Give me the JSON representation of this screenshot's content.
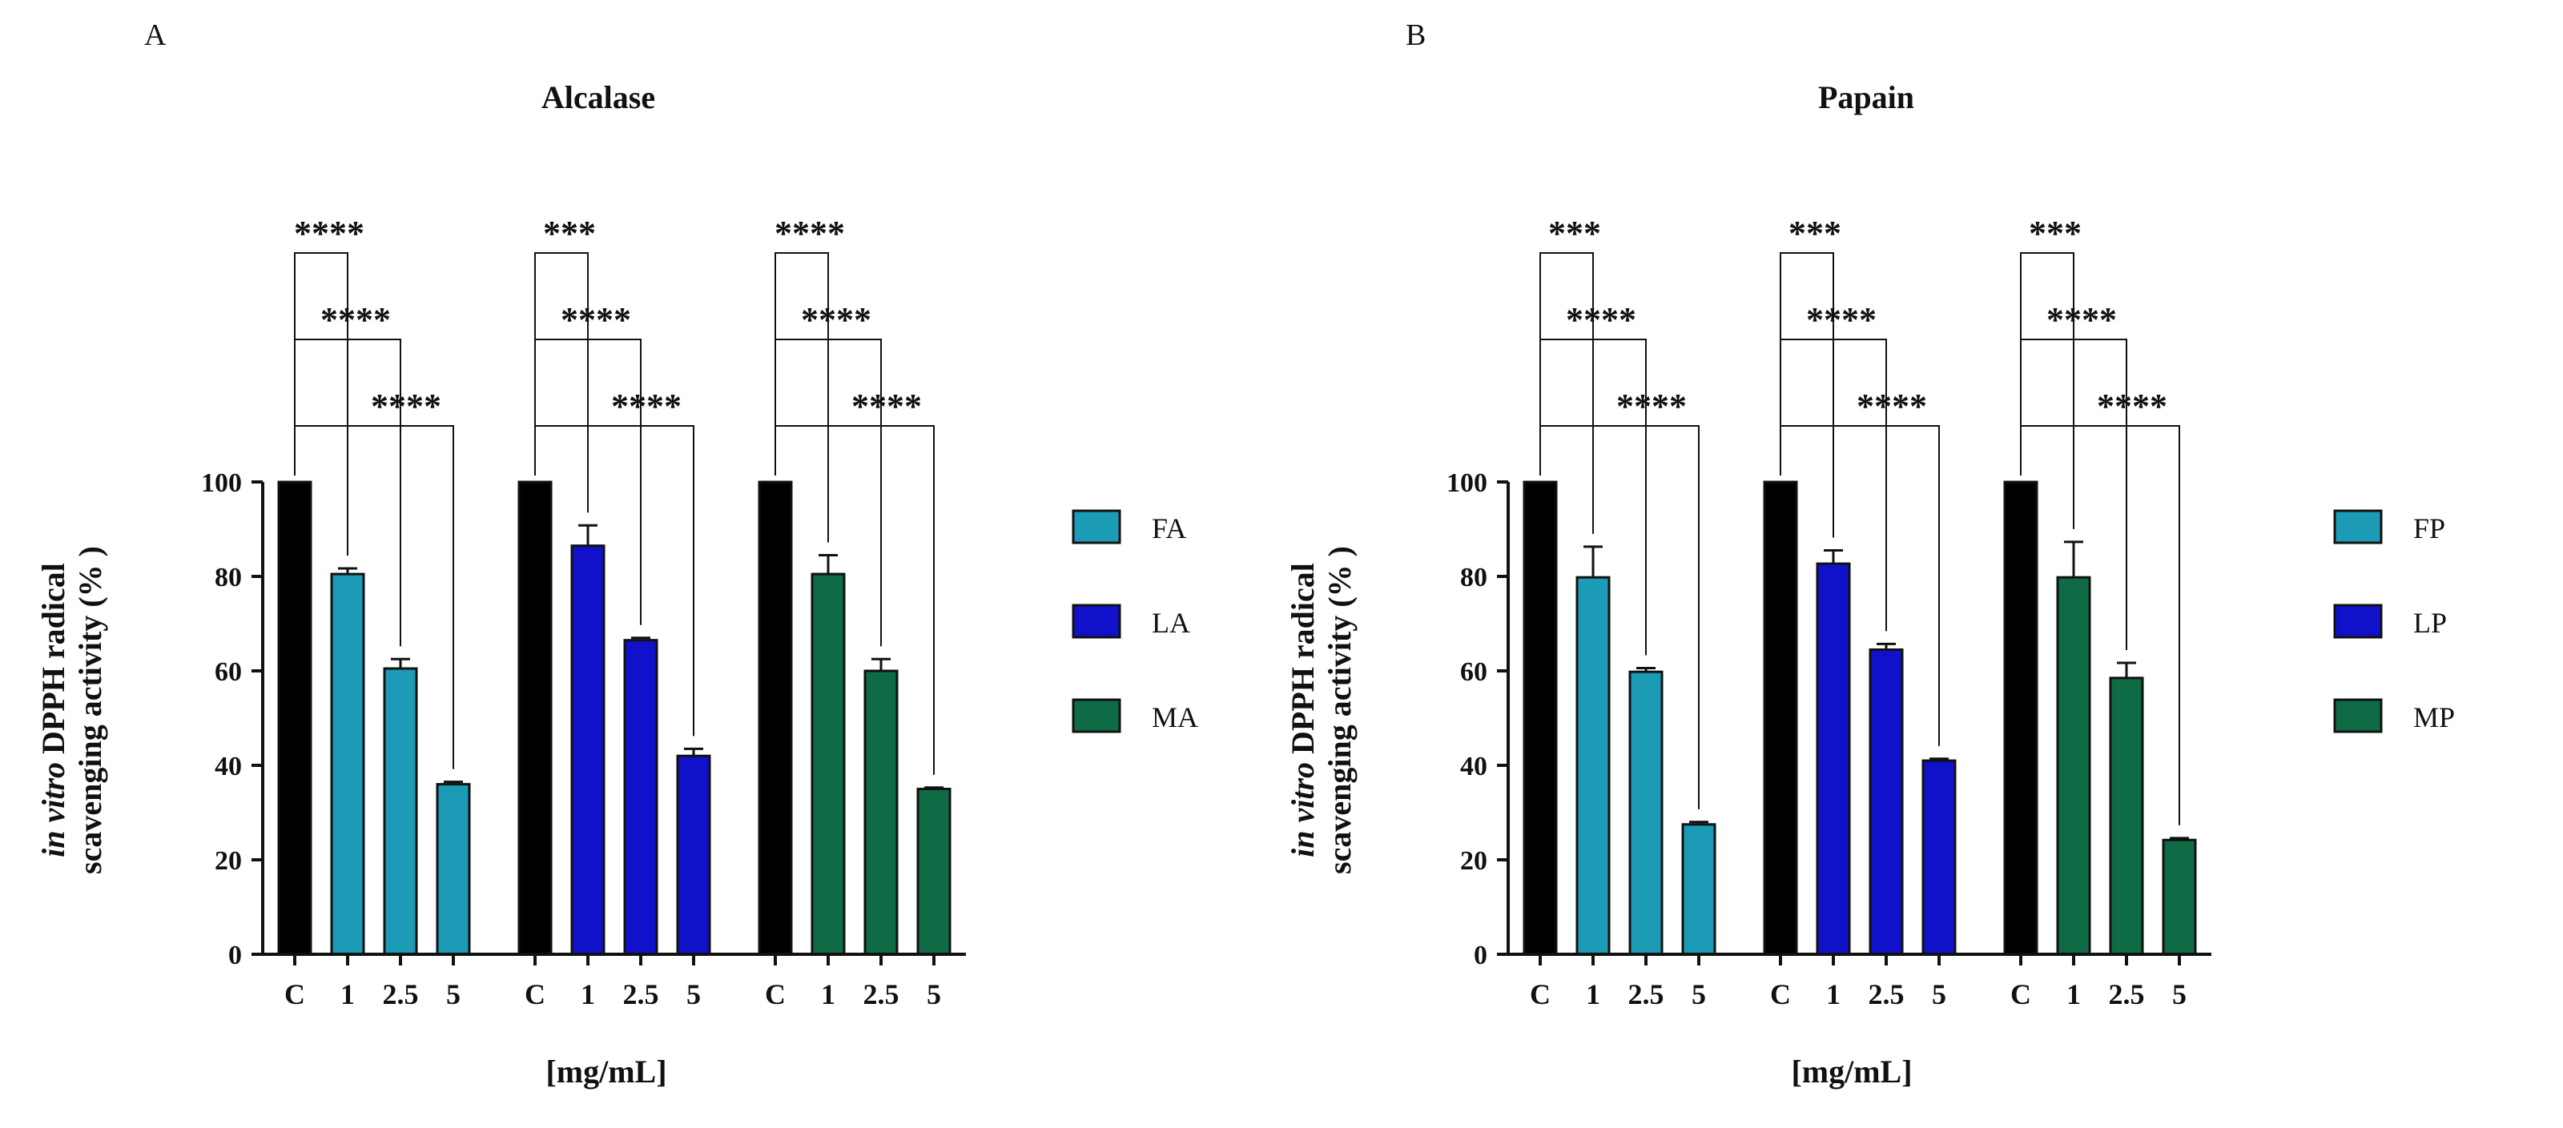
{
  "chart_data": [
    {
      "type": "bar",
      "panel": "A",
      "title": "Alcalase",
      "xlabel": "[mg/mL]",
      "ylabel_italic": "in vitro",
      "ylabel_rest": " DPPH radical",
      "ylabel_line2": "scavenging activity (% )",
      "ylim": [
        0,
        100
      ],
      "yticks": [
        "0",
        "20",
        "40",
        "60",
        "80",
        "100"
      ],
      "categories": [
        "C",
        "1",
        "2.5",
        "5"
      ],
      "series": [
        {
          "name": "FA",
          "color": "#1b9bb5",
          "values": [
            100,
            80.5,
            60.5,
            36.0
          ],
          "errors": [
            0,
            1.2,
            2.0,
            0.5
          ],
          "significance": [
            "****",
            "****",
            "****"
          ]
        },
        {
          "name": "LA",
          "color": "#1111cc",
          "values": [
            100,
            86.5,
            66.5,
            42.0
          ],
          "errors": [
            0,
            4.3,
            0.5,
            1.5
          ],
          "significance": [
            "***",
            "****",
            "****"
          ]
        },
        {
          "name": "MA",
          "color": "#0e6b45",
          "values": [
            100,
            80.5,
            60.0,
            35.0
          ],
          "errors": [
            0,
            4.0,
            2.5,
            0.3
          ],
          "significance": [
            "****",
            "****",
            "****"
          ]
        }
      ],
      "control_color": "#000000"
    },
    {
      "type": "bar",
      "panel": "B",
      "title": "Papain",
      "xlabel": "[mg/mL]",
      "ylabel_italic": "in vitro",
      "ylabel_rest": " DPPH radical",
      "ylabel_line2": "scavenging activity (% )",
      "ylim": [
        0,
        100
      ],
      "yticks": [
        "0",
        "20",
        "40",
        "60",
        "80",
        "100"
      ],
      "categories": [
        "C",
        "1",
        "2.5",
        "5"
      ],
      "series": [
        {
          "name": "FP",
          "color": "#1b9bb5",
          "values": [
            100,
            79.8,
            59.8,
            27.5
          ],
          "errors": [
            0,
            6.5,
            0.8,
            0.5
          ],
          "significance": [
            "***",
            "****",
            "****"
          ]
        },
        {
          "name": "LP",
          "color": "#1111cc",
          "values": [
            100,
            82.7,
            64.5,
            41.0
          ],
          "errors": [
            0,
            2.8,
            1.2,
            0.4
          ],
          "significance": [
            "***",
            "****",
            "****"
          ]
        },
        {
          "name": "MP",
          "color": "#0e6b45",
          "values": [
            100,
            79.8,
            58.5,
            24.2
          ],
          "errors": [
            0,
            7.5,
            3.2,
            0.4
          ],
          "significance": [
            "***",
            "****",
            "****"
          ]
        }
      ],
      "control_color": "#000000"
    }
  ]
}
